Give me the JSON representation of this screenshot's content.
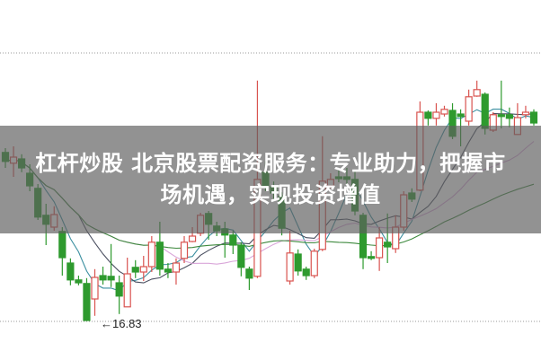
{
  "headline": {
    "line1": "杠杆炒股  北京股票配资服务：专业助力，把握市",
    "line2": "场机遇，实现投资增值"
  },
  "chart_data": {
    "type": "candlestick",
    "title": "",
    "xlabel": "",
    "ylabel": "",
    "ylim": [
      16.6,
      24.0
    ],
    "grid": "dotted horizontal lines only",
    "annotation": {
      "text": "←16.83",
      "value": 16.83
    },
    "colors": {
      "up": "#d9534f",
      "down": "#2e9a2e",
      "ma_lines": [
        "#3b8fa0",
        "#4a4f60",
        "#d9a6d9",
        "#3f8a3f"
      ]
    },
    "moving_averages": "4 moving-average lines overlaid (computed from closes)",
    "ohlc": [
      [
        21.51,
        21.26,
        21.63,
        21.08
      ],
      [
        21.21,
        21.38,
        21.68,
        20.83
      ],
      [
        21.33,
        21.08,
        21.46,
        20.96
      ],
      [
        20.93,
        20.58,
        21.18,
        20.43
      ],
      [
        20.51,
        19.71,
        20.63,
        19.63
      ],
      [
        19.76,
        19.51,
        20.08,
        18.93
      ],
      [
        19.43,
        19.78,
        20.01,
        19.33
      ],
      [
        19.31,
        18.58,
        19.43,
        18.08
      ],
      [
        18.43,
        17.96,
        18.56,
        17.81
      ],
      [
        17.96,
        17.88,
        18.08,
        17.81
      ],
      [
        17.86,
        16.83,
        18.01,
        16.83
      ],
      [
        17.43,
        18.03,
        18.26,
        16.96
      ],
      [
        18.08,
        17.96,
        18.33,
        17.83
      ],
      [
        18.06,
        17.96,
        18.96,
        17.76
      ],
      [
        17.88,
        17.51,
        18.08,
        17.01
      ],
      [
        17.21,
        18.13,
        18.58,
        17.21
      ],
      [
        18.31,
        18.18,
        18.51,
        18.01
      ],
      [
        18.18,
        18.33,
        18.63,
        17.93
      ],
      [
        18.33,
        19.01,
        19.18,
        18.18
      ],
      [
        19.01,
        18.26,
        19.58,
        18.08
      ],
      [
        18.26,
        18.18,
        18.43,
        18.01
      ],
      [
        18.18,
        18.43,
        18.56,
        17.83
      ],
      [
        18.56,
        19.01,
        19.18,
        18.43
      ],
      [
        19.03,
        19.18,
        19.43,
        19.01
      ],
      [
        19.26,
        19.76,
        19.83,
        19.18
      ],
      [
        19.81,
        19.51,
        19.88,
        19.08
      ],
      [
        19.46,
        19.33,
        19.58,
        19.18
      ],
      [
        19.38,
        19.21,
        19.58,
        18.58
      ],
      [
        19.21,
        18.93,
        19.33,
        18.68
      ],
      [
        18.93,
        18.31,
        19.01,
        18.06
      ],
      [
        18.26,
        18.01,
        18.33,
        17.68
      ],
      [
        18.06,
        20.76,
        23.51,
        18.01
      ],
      [
        20.96,
        20.58,
        21.26,
        20.43
      ],
      [
        20.55,
        20.38,
        20.7,
        20.2
      ],
      [
        20.3,
        19.4,
        20.4,
        19.2
      ],
      [
        17.93,
        18.71,
        19.33,
        17.83
      ],
      [
        18.68,
        18.21,
        18.81,
        18.08
      ],
      [
        18.26,
        18.08,
        18.33,
        17.96
      ],
      [
        18.08,
        18.76,
        18.83,
        18.01
      ],
      [
        18.81,
        20.71,
        21.96,
        18.76
      ],
      [
        20.58,
        20.76,
        20.93,
        20.51
      ],
      [
        20.83,
        20.78,
        21.01,
        20.68
      ],
      [
        20.83,
        20.76,
        21.08,
        20.58
      ],
      [
        20.76,
        19.88,
        21.01,
        19.76
      ],
      [
        19.76,
        18.58,
        19.83,
        18.26
      ],
      [
        18.61,
        18.56,
        18.76,
        18.51
      ],
      [
        18.58,
        19.13,
        19.43,
        18.21
      ],
      [
        19.01,
        18.88,
        19.81,
        18.43
      ],
      [
        18.83,
        19.43,
        19.76,
        18.71
      ],
      [
        19.43,
        20.33,
        20.43,
        19.33
      ],
      [
        20.38,
        20.21,
        20.51,
        20.13
      ],
      [
        20.46,
        22.63,
        22.93,
        20.43
      ],
      [
        22.63,
        22.46,
        22.68,
        22.26
      ],
      [
        22.46,
        22.63,
        22.88,
        22.26
      ],
      [
        22.58,
        22.71,
        22.81,
        22.51
      ],
      [
        22.68,
        21.96,
        22.88,
        21.88
      ],
      [
        22.58,
        22.51,
        22.71,
        21.68
      ],
      [
        22.38,
        23.06,
        23.26,
        22.26
      ],
      [
        23.08,
        23.26,
        23.51,
        23.06
      ],
      [
        23.13,
        22.18,
        23.18,
        22.01
      ],
      [
        22.13,
        22.56,
        22.63,
        22.08
      ],
      [
        22.56,
        22.51,
        23.51,
        22.18
      ],
      [
        22.56,
        22.46,
        22.76,
        22.21
      ],
      [
        22.01,
        22.48,
        22.88,
        22.01
      ],
      [
        22.56,
        22.63,
        22.81,
        22.46
      ],
      [
        22.63,
        22.33,
        22.71,
        22.26
      ]
    ]
  }
}
